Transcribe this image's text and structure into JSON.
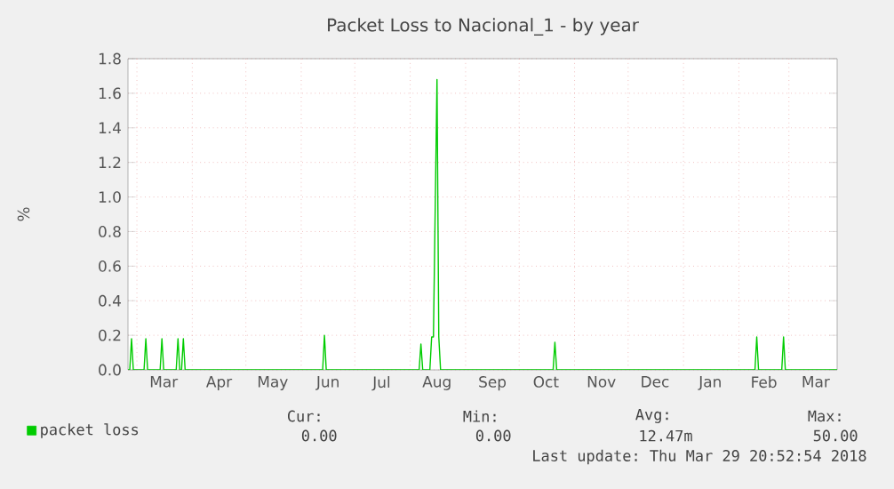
{
  "chart_data": {
    "type": "line",
    "title": "Packet Loss to Nacional_1 - by year",
    "ylabel": "%",
    "x": [
      "2017-02-24",
      "2017-02-25",
      "2017-02-26",
      "2017-02-27",
      "2017-03-05",
      "2017-03-06",
      "2017-03-07",
      "2017-03-14",
      "2017-03-15",
      "2017-03-16",
      "2017-03-23",
      "2017-03-24",
      "2017-03-25",
      "2017-03-26",
      "2017-03-27",
      "2017-03-28",
      "2017-06-13",
      "2017-06-14",
      "2017-06-15",
      "2017-08-06",
      "2017-08-07",
      "2017-08-08",
      "2017-08-12",
      "2017-08-13",
      "2017-08-14",
      "2017-08-16",
      "2017-08-17",
      "2017-08-18",
      "2017-10-20",
      "2017-10-21",
      "2017-10-22",
      "2018-02-10",
      "2018-02-11",
      "2018-02-12",
      "2018-02-25",
      "2018-02-26",
      "2018-02-27",
      "2018-03-28"
    ],
    "series": [
      {
        "name": "packet loss",
        "color": "#00cc00",
        "values": [
          0,
          0,
          0.18,
          0,
          0,
          0.18,
          0,
          0,
          0.18,
          0,
          0,
          0.18,
          0,
          0,
          0.18,
          0,
          0,
          0.2,
          0,
          0,
          0.15,
          0,
          0,
          0.19,
          0.19,
          1.68,
          0.19,
          0,
          0,
          0.16,
          0,
          0,
          0.19,
          0,
          0,
          0.19,
          0,
          0
        ]
      }
    ],
    "xlim": [
      "2017-02-24",
      "2018-03-28"
    ],
    "xticks": [
      {
        "value": "2017-03-01",
        "label": null
      },
      {
        "value": "2017-04-01",
        "label": null
      },
      {
        "value": "2017-05-01",
        "label": null
      },
      {
        "value": "2017-06-01",
        "label": null
      },
      {
        "value": "2017-07-01",
        "label": null
      },
      {
        "value": "2017-08-01",
        "label": null
      },
      {
        "value": "2017-09-01",
        "label": null
      },
      {
        "value": "2017-10-01",
        "label": null
      },
      {
        "value": "2017-11-01",
        "label": null
      },
      {
        "value": "2017-12-01",
        "label": null
      },
      {
        "value": "2018-01-01",
        "label": null
      },
      {
        "value": "2018-02-01",
        "label": null
      },
      {
        "value": "2018-03-01",
        "label": null
      },
      {
        "value": "2017-03-16",
        "label": "Mar"
      },
      {
        "value": "2017-04-16",
        "label": "Apr"
      },
      {
        "value": "2017-05-16",
        "label": "May"
      },
      {
        "value": "2017-06-16",
        "label": "Jun"
      },
      {
        "value": "2017-07-16",
        "label": "Jul"
      },
      {
        "value": "2017-08-16",
        "label": "Aug"
      },
      {
        "value": "2017-09-16",
        "label": "Sep"
      },
      {
        "value": "2017-10-16",
        "label": "Oct"
      },
      {
        "value": "2017-11-16",
        "label": "Nov"
      },
      {
        "value": "2017-12-16",
        "label": "Dec"
      },
      {
        "value": "2018-01-16",
        "label": "Jan"
      },
      {
        "value": "2018-02-15",
        "label": "Feb"
      },
      {
        "value": "2018-03-16",
        "label": "Mar"
      }
    ],
    "ylim": [
      0,
      1.8
    ],
    "yticks": [
      {
        "value": 0,
        "label": "0.0"
      },
      {
        "value": 0.2,
        "label": "0.2"
      },
      {
        "value": 0.4,
        "label": "0.4"
      },
      {
        "value": 0.6,
        "label": "0.6"
      },
      {
        "value": 0.8,
        "label": "0.8"
      },
      {
        "value": 1.0,
        "label": "1.0"
      },
      {
        "value": 1.2,
        "label": "1.2"
      },
      {
        "value": 1.4,
        "label": "1.4"
      },
      {
        "value": 1.6,
        "label": "1.6"
      },
      {
        "value": 1.8,
        "label": "1.8"
      }
    ],
    "grid": true,
    "legend": "bottom",
    "annotations": [
      "Cur:",
      "Min:",
      "Avg:",
      "Max:",
      "0.00",
      "0.00",
      "12.47m",
      "50.00",
      "Last update: Thu Mar 29 20:52:54 2018"
    ]
  }
}
